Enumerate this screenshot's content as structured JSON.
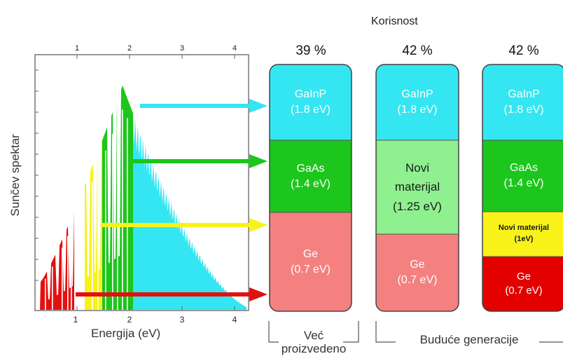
{
  "title": "Korisnost",
  "spectrum": {
    "ylabel": "Sunčev spektar",
    "xlabel": "Energija (eV)",
    "top_ticks": [
      "1",
      "2",
      "3",
      "4"
    ],
    "bottom_ticks": [
      "1",
      "2",
      "3",
      "4"
    ]
  },
  "cells": [
    {
      "efficiency": "39 %",
      "layers": [
        {
          "name": "GaInP",
          "energy": "(1.8 eV)"
        },
        {
          "name": "GaAs",
          "energy": "(1.4 eV)"
        },
        {
          "name": "Ge",
          "energy": "(0.7 eV)"
        }
      ]
    },
    {
      "efficiency": "42 %",
      "layers": [
        {
          "name": "GaInP",
          "energy": "(1.8 eV)"
        },
        {
          "name1": "Novi",
          "name2": "materijal",
          "energy": "(1.25 eV)"
        },
        {
          "name": "Ge",
          "energy": "(0.7 eV)"
        }
      ]
    },
    {
      "efficiency": "42 %",
      "layers": [
        {
          "name": "GaInP",
          "energy": "(1.8 eV)"
        },
        {
          "name": "GaAs",
          "energy": "(1.4 eV)"
        },
        {
          "name": "Novi materijal",
          "energy": "(1eV)"
        },
        {
          "name": "Ge",
          "energy": "(0.7 eV)"
        }
      ]
    }
  ],
  "groups": {
    "existing_line1": "Već",
    "existing_line2": "proizvedeno",
    "future": "Buduće generacije"
  },
  "colors": {
    "cyan": "#33e6f2",
    "green": "#1cc61c",
    "yellow": "#f8f21a",
    "red": "#e41010",
    "salmon": "#f58080",
    "light_green": "#8ef08e",
    "dark_red": "#e30000"
  }
}
